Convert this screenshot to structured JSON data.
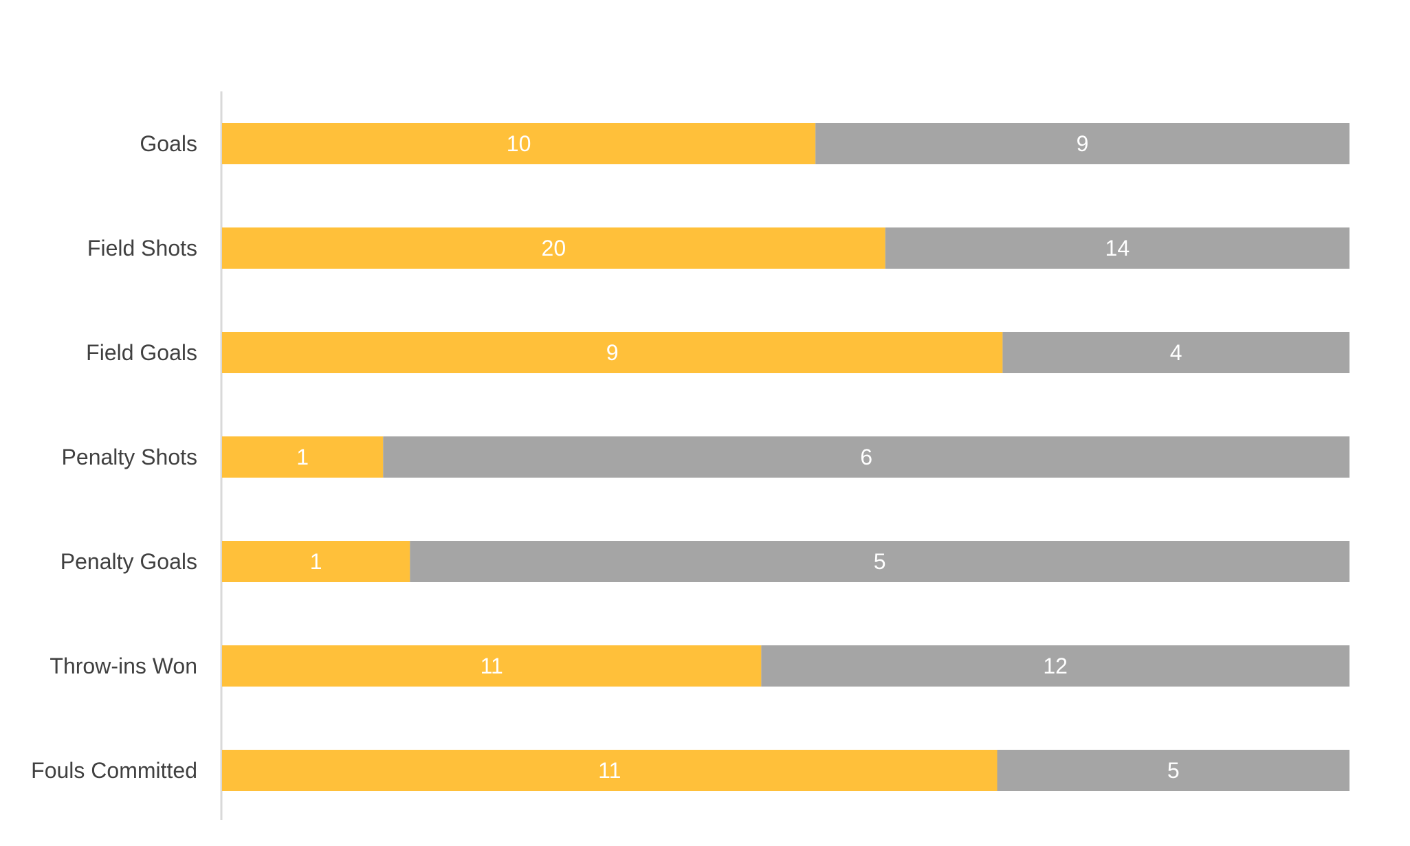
{
  "chart_data": {
    "type": "bar",
    "orientation": "horizontal",
    "stacking": "percent",
    "categories": [
      "Goals",
      "Field Shots",
      "Field Goals",
      "Penalty Shots",
      "Penalty Goals",
      "Throw-ins Won",
      "Fouls Committed"
    ],
    "series": [
      {
        "values": [
          10,
          20,
          9,
          1,
          1,
          11,
          11
        ],
        "color": "#FFC03A"
      },
      {
        "values": [
          9,
          14,
          4,
          6,
          5,
          12,
          5
        ],
        "color": "#A5A5A5"
      }
    ],
    "title": "",
    "xlabel": "",
    "ylabel": "",
    "grid": false,
    "legend": "none",
    "data_labels": true
  }
}
